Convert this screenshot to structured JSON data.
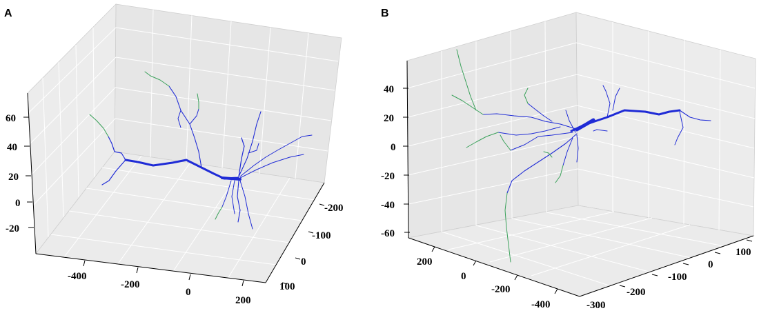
{
  "colors": {
    "dendrite_blue": "#1f2bd6",
    "dendrite_green": "#3aa15a",
    "pane": "#e8e8e8"
  },
  "chart_data": [
    {
      "type": "scatter",
      "panel_label": "A",
      "projection": "3d",
      "grid": true,
      "z_ticks": [
        "60",
        "40",
        "20",
        "0",
        "-20"
      ],
      "x_ticks": [
        "-400",
        "-200",
        "0",
        "200"
      ],
      "y_ticks": [
        "-200",
        "-100",
        "0",
        "100"
      ]
    },
    {
      "type": "scatter",
      "panel_label": "B",
      "projection": "3d",
      "grid": true,
      "z_ticks": [
        "40",
        "20",
        "0",
        "-20",
        "-40",
        "-60"
      ],
      "x_ticks": [
        "200",
        "0",
        "-200",
        "-400"
      ],
      "y_ticks": [
        "-300",
        "-200",
        "-100",
        "0",
        "100"
      ]
    }
  ]
}
